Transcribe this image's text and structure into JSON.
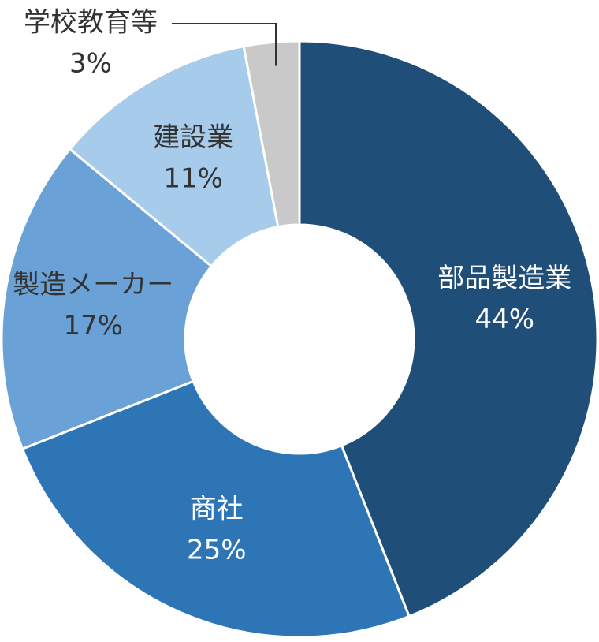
{
  "chart_data": {
    "type": "donut",
    "categories": [
      "部品製造業",
      "商社",
      "製造メーカー",
      "建設業",
      "学校教育等"
    ],
    "values": [
      44,
      25,
      17,
      11,
      3
    ],
    "value_labels": [
      "44%",
      "25%",
      "17%",
      "11%",
      "3%"
    ],
    "colors": [
      "#1f4e79",
      "#2e75b6",
      "#6aa2d8",
      "#a7cbea",
      "#c9c9c9"
    ]
  }
}
